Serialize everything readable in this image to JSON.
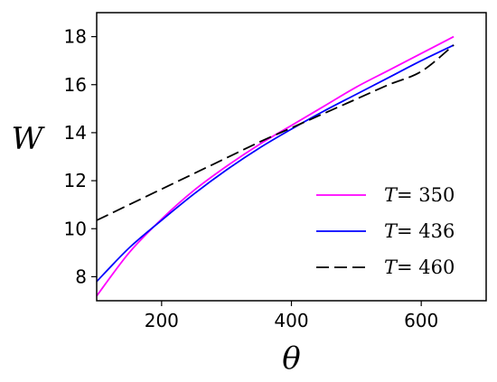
{
  "chart_data": {
    "type": "line",
    "xlabel": "θ",
    "ylabel": "W",
    "xlim": [
      100,
      700
    ],
    "ylim": [
      7,
      19
    ],
    "xticks": [
      200,
      400,
      600
    ],
    "yticks": [
      8,
      10,
      12,
      14,
      16,
      18
    ],
    "grid": false,
    "legend_position": "lower-right",
    "series": [
      {
        "name_var": "T",
        "name_eq": "= ",
        "name_val": "350",
        "color": "#ff00ff",
        "dash": "solid",
        "x": [
          100,
          150,
          200,
          250,
          300,
          350,
          400,
          450,
          500,
          550,
          600,
          650
        ],
        "y": [
          7.2,
          9.0,
          10.4,
          11.6,
          12.6,
          13.5,
          14.3,
          15.1,
          15.9,
          16.6,
          17.3,
          18.0
        ]
      },
      {
        "name_var": "T",
        "name_eq": "= ",
        "name_val": "436",
        "color": "#0000ff",
        "dash": "solid",
        "x": [
          100,
          150,
          200,
          250,
          300,
          350,
          400,
          450,
          500,
          550,
          600,
          650
        ],
        "y": [
          7.8,
          9.2,
          10.35,
          11.45,
          12.45,
          13.35,
          14.15,
          14.9,
          15.6,
          16.3,
          17.0,
          17.65
        ]
      },
      {
        "name_var": "T",
        "name_eq": "= ",
        "name_val": "460",
        "color": "#000000",
        "dash": "dashed",
        "x": [
          100,
          150,
          200,
          250,
          300,
          350,
          400,
          450,
          500,
          550,
          600,
          650
        ],
        "y": [
          10.35,
          11.0,
          11.65,
          12.3,
          12.95,
          13.6,
          14.2,
          14.8,
          15.4,
          16.0,
          16.55,
          17.65
        ]
      }
    ]
  }
}
